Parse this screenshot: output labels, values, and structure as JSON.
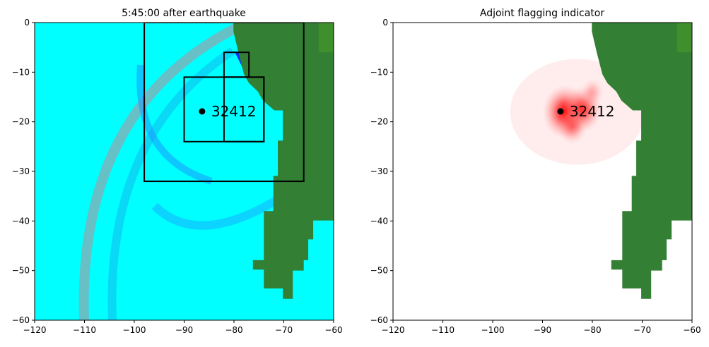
{
  "chart_data": [
    {
      "type": "heatmap",
      "title": "5:45:00 after earthquake",
      "xlim": [
        -120,
        -60
      ],
      "ylim": [
        -60,
        0
      ],
      "xticks": [
        -120,
        -110,
        -100,
        -90,
        -80,
        -70,
        -60
      ],
      "yticks": [
        0,
        -10,
        -20,
        -30,
        -40,
        -50,
        -60
      ],
      "xtick_labels": [
        "−120",
        "−110",
        "−100",
        "−90",
        "−80",
        "−70",
        "−60"
      ],
      "ytick_labels": [
        "0",
        "−10",
        "−20",
        "−30",
        "−40",
        "−50",
        "−60"
      ],
      "gauge": {
        "label": "32412",
        "x": -86.4,
        "y": -17.9
      },
      "regions": [
        {
          "x": [
            -98,
            -66
          ],
          "y": [
            -32,
            0
          ]
        },
        {
          "x": [
            -90,
            -74
          ],
          "y": [
            -24,
            -11
          ]
        },
        {
          "x": [
            -82,
            -74
          ],
          "y": [
            -24,
            -11
          ]
        },
        {
          "x": [
            -82,
            -77
          ],
          "y": [
            -11,
            -6
          ]
        }
      ],
      "land": [
        [
          -80.1,
          0
        ],
        [
          -80.1,
          -1.8
        ],
        [
          -79.1,
          -6.1
        ],
        [
          -78,
          -10.4
        ],
        [
          -77,
          -12.2
        ],
        [
          -75.2,
          -13.9
        ],
        [
          -74.2,
          -15.7
        ],
        [
          -71.9,
          -17.7
        ],
        [
          -70.2,
          -17.7
        ],
        [
          -70.2,
          -23.8
        ],
        [
          -71.2,
          -23.8
        ],
        [
          -71.2,
          -30.9
        ],
        [
          -72.1,
          -30.9
        ],
        [
          -72.1,
          -38
        ],
        [
          -74,
          -38
        ],
        [
          -74,
          -47.9
        ],
        [
          -76.2,
          -47.9
        ],
        [
          -76.2,
          -49.8
        ],
        [
          -74,
          -49.8
        ],
        [
          -74,
          -53.6
        ],
        [
          -70.2,
          -53.6
        ],
        [
          -70.2,
          -55.7
        ],
        [
          -68.2,
          -55.7
        ],
        [
          -68.2,
          -50
        ],
        [
          -66,
          -50
        ],
        [
          -66,
          -47.9
        ],
        [
          -65.1,
          -47.9
        ],
        [
          -65.1,
          -43.7
        ],
        [
          -64.1,
          -43.7
        ],
        [
          -64.1,
          -39.9
        ],
        [
          -60,
          -39.9
        ],
        [
          -60,
          0
        ]
      ],
      "colors": {
        "water": "#00ffff",
        "land": "#337f33",
        "wave": "#1e90ff"
      }
    },
    {
      "type": "heatmap",
      "title": "Adjoint flagging indicator",
      "xlim": [
        -120,
        -60
      ],
      "ylim": [
        -60,
        0
      ],
      "xticks": [
        -120,
        -110,
        -100,
        -90,
        -80,
        -70,
        -60
      ],
      "yticks": [
        0,
        -10,
        -20,
        -30,
        -40,
        -50,
        -60
      ],
      "xtick_labels": [
        "−120",
        "−110",
        "−100",
        "−90",
        "−80",
        "−70",
        "−60"
      ],
      "ytick_labels": [
        "0",
        "−10",
        "−20",
        "−30",
        "−40",
        "−50",
        "−60"
      ],
      "gauge": {
        "label": "32412",
        "x": -86.4,
        "y": -17.9
      },
      "hotspots": [
        {
          "x": -85.5,
          "y": -18,
          "intensity": 1.0
        },
        {
          "x": -82,
          "y": -17.5,
          "intensity": 0.8
        },
        {
          "x": -84,
          "y": -21,
          "intensity": 0.5
        },
        {
          "x": -80,
          "y": -14,
          "intensity": 0.3
        }
      ],
      "colors": {
        "background": "#ffffff",
        "land": "#337f33",
        "flag": "#ff0000"
      }
    }
  ]
}
